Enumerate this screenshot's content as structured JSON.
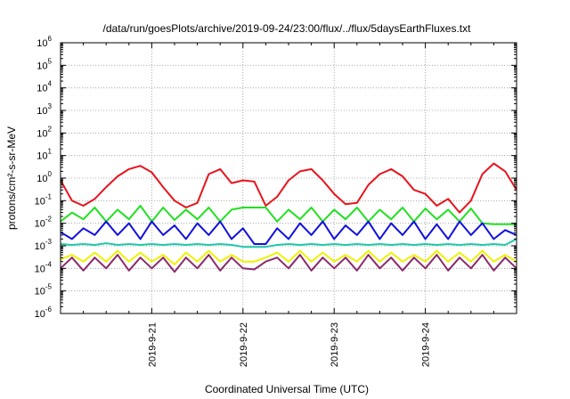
{
  "chart_data": {
    "type": "line",
    "title": "/data/run/goesPlots/archive/2019-09-24/23:00/flux/../flux/5daysEarthFluxes.txt",
    "xlabel": "Coordinated Universal Time (UTC)",
    "ylabel": "protons/cm²-s-sr-MeV",
    "yscale": "log",
    "ylim": [
      1e-06,
      1000000.0
    ],
    "xlim": [
      "2019-09-20T00:00",
      "2019-09-25T00:00"
    ],
    "y_ticks": [
      {
        "base": "10",
        "exp": "-6"
      },
      {
        "base": "10",
        "exp": "-5"
      },
      {
        "base": "10",
        "exp": "-4"
      },
      {
        "base": "10",
        "exp": "-3"
      },
      {
        "base": "10",
        "exp": "-2"
      },
      {
        "base": "10",
        "exp": "-1"
      },
      {
        "base": "10",
        "exp": "0"
      },
      {
        "base": "10",
        "exp": "1"
      },
      {
        "base": "10",
        "exp": "2"
      },
      {
        "base": "10",
        "exp": "3"
      },
      {
        "base": "10",
        "exp": "4"
      },
      {
        "base": "10",
        "exp": "5"
      },
      {
        "base": "10",
        "exp": "6"
      }
    ],
    "x_ticks": [
      "2019-9-21",
      "2019-9-22",
      "2019-9-23",
      "2019-9-24"
    ],
    "grid": true,
    "legend": "none",
    "series": [
      {
        "color": "#e8141c",
        "x": [
          "2019-09-20T00:00",
          "2019-09-20T03:00",
          "2019-09-20T06:00",
          "2019-09-20T09:00",
          "2019-09-20T12:00",
          "2019-09-20T15:00",
          "2019-09-20T18:00",
          "2019-09-20T21:00",
          "2019-09-21T00:00",
          "2019-09-21T03:00",
          "2019-09-21T06:00",
          "2019-09-21T09:00",
          "2019-09-21T12:00",
          "2019-09-21T15:00",
          "2019-09-21T18:00",
          "2019-09-21T21:00",
          "2019-09-22T00:00",
          "2019-09-22T03:00",
          "2019-09-22T06:00",
          "2019-09-22T09:00",
          "2019-09-22T12:00",
          "2019-09-22T15:00",
          "2019-09-22T18:00",
          "2019-09-22T21:00",
          "2019-09-23T00:00",
          "2019-09-23T03:00",
          "2019-09-23T06:00",
          "2019-09-23T09:00",
          "2019-09-23T12:00",
          "2019-09-23T15:00",
          "2019-09-23T18:00",
          "2019-09-23T21:00",
          "2019-09-24T00:00",
          "2019-09-24T03:00",
          "2019-09-24T06:00",
          "2019-09-24T09:00",
          "2019-09-24T12:00",
          "2019-09-24T15:00",
          "2019-09-24T18:00",
          "2019-09-24T21:00",
          "2019-09-25T00:00"
        ],
        "y": [
          0.8,
          0.1,
          0.06,
          0.12,
          0.4,
          1.2,
          2.5,
          3.5,
          1.8,
          0.4,
          0.1,
          0.05,
          0.08,
          1.5,
          2.5,
          0.6,
          0.8,
          0.7,
          0.06,
          0.15,
          0.8,
          2.0,
          2.5,
          0.8,
          0.2,
          0.07,
          0.08,
          0.5,
          1.5,
          2.5,
          1.2,
          0.3,
          0.2,
          0.06,
          0.12,
          0.03,
          0.1,
          1.5,
          4.5,
          2.0,
          0.3
        ]
      },
      {
        "color": "#22e022",
        "x": [
          "2019-09-20T00:00",
          "2019-09-20T03:00",
          "2019-09-20T06:00",
          "2019-09-20T09:00",
          "2019-09-20T12:00",
          "2019-09-20T15:00",
          "2019-09-20T18:00",
          "2019-09-20T21:00",
          "2019-09-21T00:00",
          "2019-09-21T03:00",
          "2019-09-21T06:00",
          "2019-09-21T09:00",
          "2019-09-21T12:00",
          "2019-09-21T15:00",
          "2019-09-21T18:00",
          "2019-09-21T21:00",
          "2019-09-22T00:00",
          "2019-09-22T03:00",
          "2019-09-22T06:00",
          "2019-09-22T09:00",
          "2019-09-22T12:00",
          "2019-09-22T15:00",
          "2019-09-22T18:00",
          "2019-09-22T21:00",
          "2019-09-23T00:00",
          "2019-09-23T03:00",
          "2019-09-23T06:00",
          "2019-09-23T09:00",
          "2019-09-23T12:00",
          "2019-09-23T15:00",
          "2019-09-23T18:00",
          "2019-09-23T21:00",
          "2019-09-24T00:00",
          "2019-09-24T03:00",
          "2019-09-24T06:00",
          "2019-09-24T09:00",
          "2019-09-24T12:00",
          "2019-09-24T15:00",
          "2019-09-24T18:00",
          "2019-09-24T21:00",
          "2019-09-25T00:00"
        ],
        "y": [
          0.012,
          0.03,
          0.015,
          0.05,
          0.012,
          0.04,
          0.015,
          0.06,
          0.012,
          0.05,
          0.014,
          0.04,
          0.015,
          0.05,
          0.012,
          0.04,
          0.05,
          0.05,
          0.05,
          0.012,
          0.04,
          0.015,
          0.05,
          0.012,
          0.04,
          0.015,
          0.05,
          0.012,
          0.04,
          0.015,
          0.05,
          0.012,
          0.045,
          0.015,
          0.04,
          0.012,
          0.045,
          0.01,
          0.009,
          0.009,
          0.009
        ]
      },
      {
        "color": "#1010dd",
        "x": [
          "2019-09-20T00:00",
          "2019-09-20T03:00",
          "2019-09-20T06:00",
          "2019-09-20T09:00",
          "2019-09-20T12:00",
          "2019-09-20T15:00",
          "2019-09-20T18:00",
          "2019-09-20T21:00",
          "2019-09-21T00:00",
          "2019-09-21T03:00",
          "2019-09-21T06:00",
          "2019-09-21T09:00",
          "2019-09-21T12:00",
          "2019-09-21T15:00",
          "2019-09-21T18:00",
          "2019-09-21T21:00",
          "2019-09-22T00:00",
          "2019-09-22T03:00",
          "2019-09-22T06:00",
          "2019-09-22T09:00",
          "2019-09-22T12:00",
          "2019-09-22T15:00",
          "2019-09-22T18:00",
          "2019-09-22T21:00",
          "2019-09-23T00:00",
          "2019-09-23T03:00",
          "2019-09-23T06:00",
          "2019-09-23T09:00",
          "2019-09-23T12:00",
          "2019-09-23T15:00",
          "2019-09-23T18:00",
          "2019-09-23T21:00",
          "2019-09-24T00:00",
          "2019-09-24T03:00",
          "2019-09-24T06:00",
          "2019-09-24T09:00",
          "2019-09-24T12:00",
          "2019-09-24T15:00",
          "2019-09-24T18:00",
          "2019-09-24T21:00",
          "2019-09-25T00:00"
        ],
        "y": [
          0.004,
          0.002,
          0.006,
          0.003,
          0.012,
          0.003,
          0.01,
          0.002,
          0.012,
          0.003,
          0.008,
          0.002,
          0.01,
          0.003,
          0.012,
          0.002,
          0.006,
          0.0012,
          0.0012,
          0.006,
          0.002,
          0.01,
          0.003,
          0.012,
          0.002,
          0.008,
          0.003,
          0.012,
          0.002,
          0.01,
          0.003,
          0.012,
          0.002,
          0.009,
          0.002,
          0.012,
          0.003,
          0.01,
          0.002,
          0.005,
          0.003
        ]
      },
      {
        "color": "#20c8a8",
        "x": [
          "2019-09-20T00:00",
          "2019-09-20T03:00",
          "2019-09-20T06:00",
          "2019-09-20T09:00",
          "2019-09-20T12:00",
          "2019-09-20T15:00",
          "2019-09-20T18:00",
          "2019-09-20T21:00",
          "2019-09-21T00:00",
          "2019-09-21T03:00",
          "2019-09-21T06:00",
          "2019-09-21T09:00",
          "2019-09-21T12:00",
          "2019-09-21T15:00",
          "2019-09-21T18:00",
          "2019-09-21T21:00",
          "2019-09-22T00:00",
          "2019-09-22T03:00",
          "2019-09-22T06:00",
          "2019-09-22T09:00",
          "2019-09-22T12:00",
          "2019-09-22T15:00",
          "2019-09-22T18:00",
          "2019-09-22T21:00",
          "2019-09-23T00:00",
          "2019-09-23T03:00",
          "2019-09-23T06:00",
          "2019-09-23T09:00",
          "2019-09-23T12:00",
          "2019-09-23T15:00",
          "2019-09-23T18:00",
          "2019-09-23T21:00",
          "2019-09-24T00:00",
          "2019-09-24T03:00",
          "2019-09-24T06:00",
          "2019-09-24T09:00",
          "2019-09-24T12:00",
          "2019-09-24T15:00",
          "2019-09-24T18:00",
          "2019-09-24T21:00",
          "2019-09-25T00:00"
        ],
        "y": [
          0.0012,
          0.0011,
          0.0012,
          0.0011,
          0.0013,
          0.0011,
          0.0012,
          0.0011,
          0.0012,
          0.0011,
          0.0012,
          0.0011,
          0.0012,
          0.0011,
          0.0012,
          0.0011,
          0.0009,
          0.0009,
          0.0009,
          0.0011,
          0.0012,
          0.0011,
          0.0012,
          0.0011,
          0.0012,
          0.0011,
          0.0012,
          0.0011,
          0.0012,
          0.0011,
          0.0012,
          0.0011,
          0.0012,
          0.0011,
          0.0012,
          0.0011,
          0.0012,
          0.0011,
          0.0012,
          0.0011,
          0.002
        ]
      },
      {
        "color": "#f0f000",
        "x": [
          "2019-09-20T00:00",
          "2019-09-20T03:00",
          "2019-09-20T06:00",
          "2019-09-20T09:00",
          "2019-09-20T12:00",
          "2019-09-20T15:00",
          "2019-09-20T18:00",
          "2019-09-20T21:00",
          "2019-09-21T00:00",
          "2019-09-21T03:00",
          "2019-09-21T06:00",
          "2019-09-21T09:00",
          "2019-09-21T12:00",
          "2019-09-21T15:00",
          "2019-09-21T18:00",
          "2019-09-21T21:00",
          "2019-09-22T00:00",
          "2019-09-22T03:00",
          "2019-09-22T06:00",
          "2019-09-22T09:00",
          "2019-09-22T12:00",
          "2019-09-22T15:00",
          "2019-09-22T18:00",
          "2019-09-22T21:00",
          "2019-09-23T00:00",
          "2019-09-23T03:00",
          "2019-09-23T06:00",
          "2019-09-23T09:00",
          "2019-09-23T12:00",
          "2019-09-23T15:00",
          "2019-09-23T18:00",
          "2019-09-23T21:00",
          "2019-09-24T00:00",
          "2019-09-24T03:00",
          "2019-09-24T06:00",
          "2019-09-24T09:00",
          "2019-09-24T12:00",
          "2019-09-24T15:00",
          "2019-09-24T18:00",
          "2019-09-24T21:00",
          "2019-09-25T00:00"
        ],
        "y": [
          0.00025,
          0.0004,
          0.0002,
          0.0005,
          0.0002,
          0.0006,
          0.0002,
          0.0005,
          0.0002,
          0.0004,
          0.00015,
          0.0005,
          0.0002,
          0.0006,
          0.0002,
          0.0004,
          0.0002,
          0.0002,
          0.0003,
          0.0005,
          0.0002,
          0.0006,
          0.0002,
          0.0005,
          0.0002,
          0.0004,
          0.0002,
          0.0006,
          0.0002,
          0.0005,
          0.0002,
          0.0004,
          0.0002,
          0.0006,
          0.0002,
          0.0005,
          0.0002,
          0.0006,
          0.0002,
          0.0004,
          0.0002
        ]
      },
      {
        "color": "#8b2a6a",
        "x": [
          "2019-09-20T00:00",
          "2019-09-20T03:00",
          "2019-09-20T06:00",
          "2019-09-20T09:00",
          "2019-09-20T12:00",
          "2019-09-20T15:00",
          "2019-09-20T18:00",
          "2019-09-20T21:00",
          "2019-09-21T00:00",
          "2019-09-21T03:00",
          "2019-09-21T06:00",
          "2019-09-21T09:00",
          "2019-09-21T12:00",
          "2019-09-21T15:00",
          "2019-09-21T18:00",
          "2019-09-21T21:00",
          "2019-09-22T00:00",
          "2019-09-22T03:00",
          "2019-09-22T06:00",
          "2019-09-22T09:00",
          "2019-09-22T12:00",
          "2019-09-22T15:00",
          "2019-09-22T18:00",
          "2019-09-22T21:00",
          "2019-09-23T00:00",
          "2019-09-23T03:00",
          "2019-09-23T06:00",
          "2019-09-23T09:00",
          "2019-09-23T12:00",
          "2019-09-23T15:00",
          "2019-09-23T18:00",
          "2019-09-23T21:00",
          "2019-09-24T00:00",
          "2019-09-24T03:00",
          "2019-09-24T06:00",
          "2019-09-24T09:00",
          "2019-09-24T12:00",
          "2019-09-24T15:00",
          "2019-09-24T18:00",
          "2019-09-24T21:00",
          "2019-09-25T00:00"
        ],
        "y": [
          0.0001,
          0.0003,
          8e-05,
          0.0003,
          0.0001,
          0.0004,
          8e-05,
          0.0003,
          0.0001,
          0.0003,
          7e-05,
          0.0003,
          0.0001,
          0.0004,
          8e-05,
          0.0003,
          0.0001,
          9e-05,
          0.0002,
          0.0003,
          0.0001,
          0.0004,
          8e-05,
          0.0003,
          0.0001,
          0.0003,
          8e-05,
          0.0004,
          0.0001,
          0.0003,
          8e-05,
          0.0003,
          0.0001,
          0.0004,
          8e-05,
          0.0003,
          0.0001,
          0.0004,
          8e-05,
          0.0003,
          0.0001
        ]
      }
    ]
  }
}
